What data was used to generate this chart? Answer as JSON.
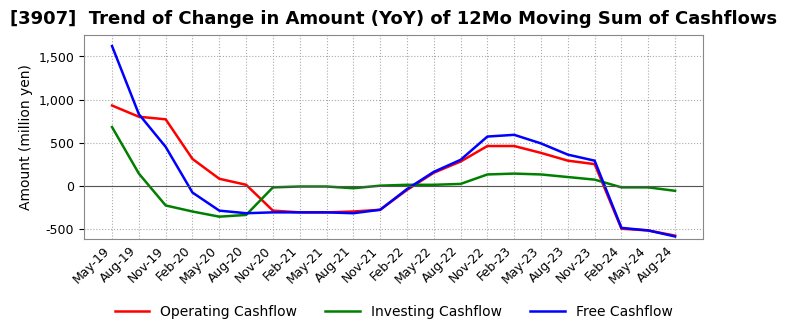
{
  "title": "[3907]  Trend of Change in Amount (YoY) of 12Mo Moving Sum of Cashflows",
  "ylabel": "Amount (million yen)",
  "ylim": [
    -620,
    1750
  ],
  "yticks": [
    -500,
    0,
    500,
    1000,
    1500
  ],
  "x_labels": [
    "May-19",
    "Aug-19",
    "Nov-19",
    "Feb-20",
    "May-20",
    "Aug-20",
    "Nov-20",
    "Feb-21",
    "May-21",
    "Aug-21",
    "Nov-21",
    "Feb-22",
    "May-22",
    "Aug-22",
    "Nov-22",
    "Feb-23",
    "May-23",
    "Aug-23",
    "Nov-23",
    "Feb-24",
    "May-24",
    "Aug-24"
  ],
  "operating": [
    930,
    800,
    770,
    310,
    80,
    10,
    -290,
    -310,
    -310,
    -300,
    -280,
    -50,
    150,
    280,
    460,
    460,
    380,
    290,
    250,
    -500,
    -520,
    -580
  ],
  "investing": [
    680,
    140,
    -230,
    -300,
    -360,
    -340,
    -20,
    -10,
    -10,
    -30,
    0,
    10,
    10,
    20,
    130,
    140,
    130,
    100,
    70,
    -20,
    -20,
    -60
  ],
  "free": [
    1620,
    830,
    450,
    -80,
    -290,
    -320,
    -310,
    -310,
    -310,
    -320,
    -280,
    -40,
    160,
    300,
    570,
    590,
    490,
    360,
    290,
    -490,
    -520,
    -590
  ],
  "op_color": "#ff0000",
  "inv_color": "#008000",
  "free_color": "#0000ff",
  "bg_color": "#ffffff",
  "grid_color": "#aaaaaa",
  "title_fontsize": 13,
  "label_fontsize": 10,
  "tick_fontsize": 9,
  "legend_fontsize": 10
}
